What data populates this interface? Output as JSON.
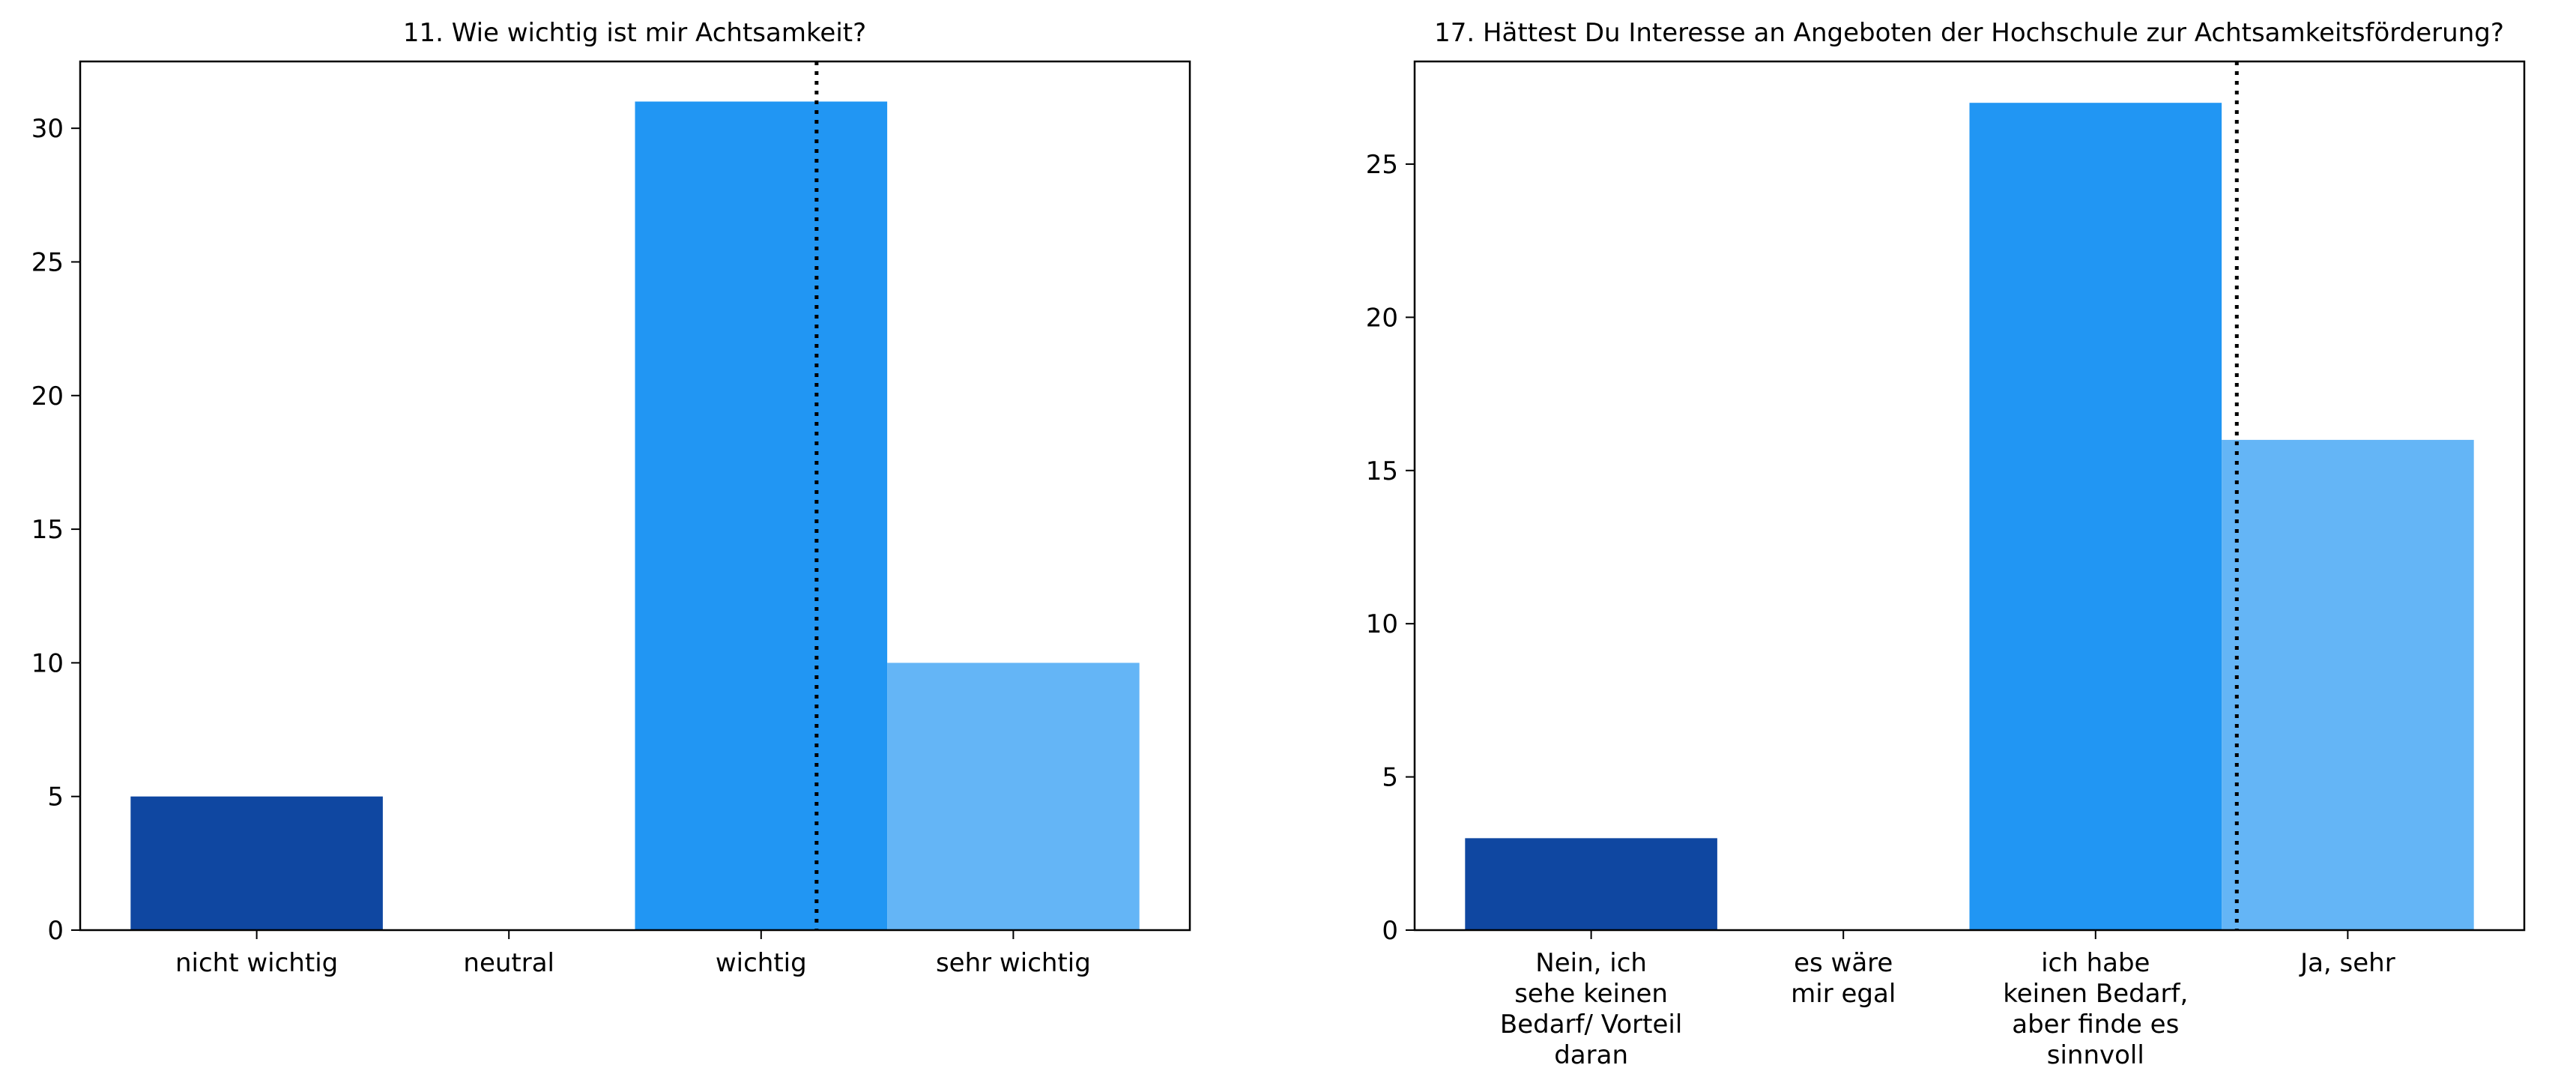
{
  "chart_data": [
    {
      "type": "bar",
      "title": "11. Wie wichtig ist mir Achtsamkeit?",
      "categories": [
        "nicht wichtig",
        "neutral",
        "wichtig",
        "sehr wichtig"
      ],
      "category_lines": [
        [
          "nicht wichtig"
        ],
        [
          "neutral"
        ],
        [
          "wichtig"
        ],
        [
          "sehr wichtig"
        ]
      ],
      "values": [
        5,
        0,
        31,
        10
      ],
      "colors": [
        "#0f47a1",
        "#2196f3",
        "#2196f3",
        "#64b5f6"
      ],
      "ylim": [
        0,
        32.5
      ],
      "yticks": [
        0,
        5,
        10,
        15,
        20,
        25,
        30
      ],
      "median_marker": {
        "position": 2.22,
        "style": "dotted"
      },
      "xlabel": "",
      "ylabel": "",
      "grid": false
    },
    {
      "type": "bar",
      "title": "17. Hättest Du Interesse an Angeboten der Hochschule zur Achtsamkeitsförderung?",
      "categories": [
        "Nein, ich sehe keinen Bedarf/ Vorteil daran",
        "es wäre mir egal",
        "ich habe keinen Bedarf, aber finde es sinnvoll",
        "Ja, sehr"
      ],
      "category_lines": [
        [
          "Nein, ich",
          "sehe keinen",
          "Bedarf/ Vorteil",
          "daran"
        ],
        [
          "es wäre",
          "mir egal"
        ],
        [
          "ich habe",
          "keinen Bedarf,",
          "aber finde es",
          "sinnvoll"
        ],
        [
          "Ja, sehr"
        ]
      ],
      "values": [
        3,
        0,
        27,
        16
      ],
      "colors": [
        "#0f47a1",
        "#2196f3",
        "#2196f3",
        "#64b5f6"
      ],
      "ylim": [
        0,
        28.35
      ],
      "yticks": [
        0,
        5,
        10,
        15,
        20,
        25
      ],
      "median_marker": {
        "position": 2.56,
        "style": "dotted"
      },
      "xlabel": "",
      "ylabel": "",
      "grid": false
    }
  ]
}
